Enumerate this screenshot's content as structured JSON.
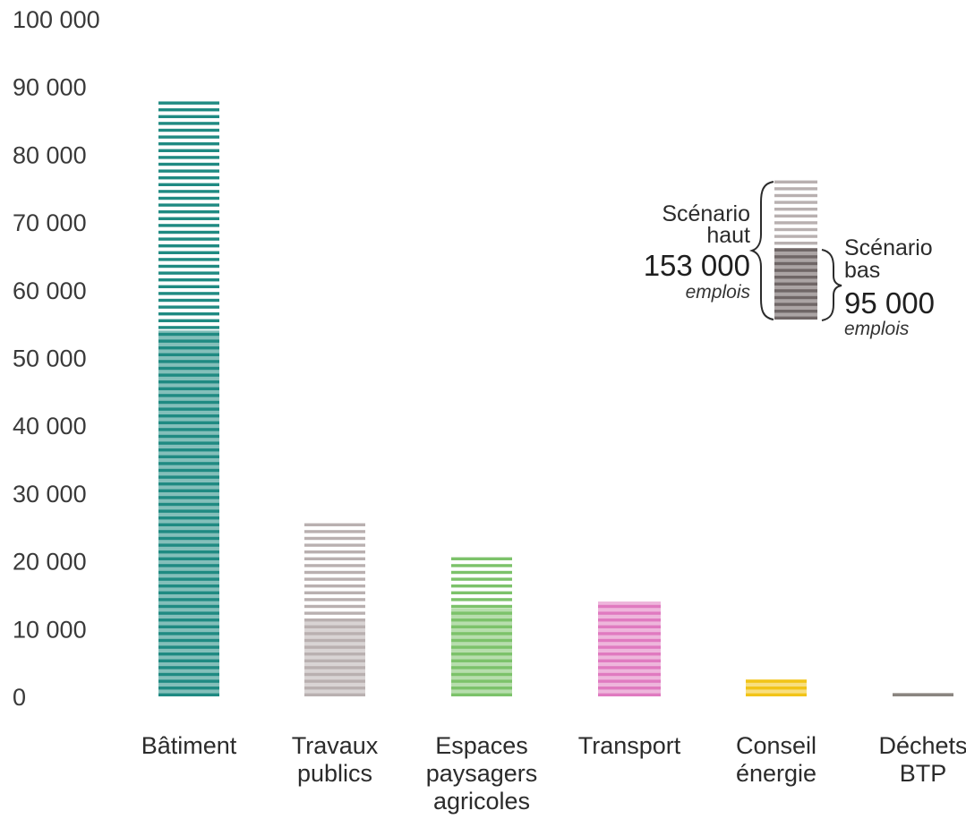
{
  "chart_data": {
    "type": "bar",
    "categories": [
      [
        "Bâtiment"
      ],
      [
        "Travaux",
        "publics"
      ],
      [
        "Espaces",
        "paysagers",
        "agricoles"
      ],
      [
        "Transport"
      ],
      [
        "Conseil",
        "énergie"
      ],
      [
        "Déchets",
        "BTP"
      ]
    ],
    "series": [
      {
        "values": [
          54000,
          11500,
          13000,
          14000,
          2500,
          500
        ]
      },
      {
        "values": [
          88500,
          25500,
          21000,
          14000,
          2500,
          500
        ]
      }
    ],
    "yticks": [
      "0",
      "10 000",
      "20 000",
      "30 000",
      "40 000",
      "50 000",
      "60 000",
      "70 000",
      "80 000",
      "90 000",
      "100 000"
    ],
    "ylim": [
      0,
      100000
    ],
    "grid": false,
    "colors": [
      "#1f8a82",
      "#b9b0b0",
      "#7cc26a",
      "#e07ac0",
      "#f2c418",
      "#8a8580"
    ],
    "legend": {
      "placement": "top-right",
      "high_label": [
        "Scénario",
        "haut"
      ],
      "high_value": "153 000",
      "high_unit": "emplois",
      "low_label": [
        "Scénario",
        "bas"
      ],
      "low_value": "95 000",
      "low_unit": "emplois",
      "color": "#8f8585"
    }
  }
}
